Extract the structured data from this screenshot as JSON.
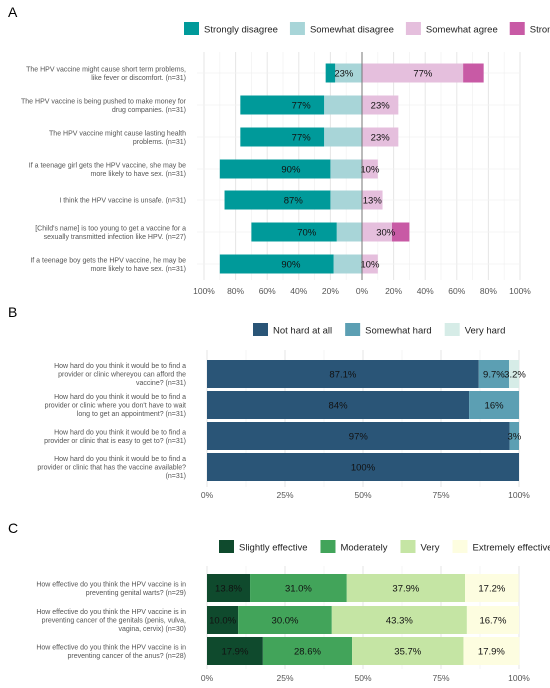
{
  "chart_data": [
    {
      "panel": "A",
      "type": "bar",
      "orientation": "horizontal",
      "stacking": "diverging",
      "legend": [
        "Strongly disagree",
        "Somewhat disagree",
        "Somewhat agree",
        "Strongly agree"
      ],
      "legend_position": "top",
      "colors": [
        "#009a9a",
        "#a8d5d8",
        "#e5bfdd",
        "#c85aa5"
      ],
      "categories": [
        "The HPV vaccine might cause short term problems,\nlike fever or discomfort.  (n=31)",
        "The HPV vaccine is being pushed to make money for\ndrug companies.  (n=31)",
        "The HPV vaccine might cause lasting health\nproblems.  (n=31)",
        "If a teenage girl gets the HPV vaccine, she may be\nmore likely to have sex.  (n=31)",
        "I think the HPV vaccine is unsafe.  (n=31)",
        "[Child's name] is too young to get a vaccine for a\nsexually transmitted infection like HPV.  (n=27)",
        "If a teenage boy gets the HPV vaccine, he may be\nmore likely to have sex.  (n=31)"
      ],
      "series": [
        {
          "name": "Strongly disagree",
          "values": [
            6,
            53,
            53,
            70,
            67,
            54,
            72
          ]
        },
        {
          "name": "Somewhat disagree",
          "values": [
            17,
            24,
            24,
            20,
            20,
            16,
            18
          ]
        },
        {
          "name": "Somewhat agree",
          "values": [
            64,
            23,
            23,
            10,
            13,
            19,
            10
          ]
        },
        {
          "name": "Strongly agree",
          "values": [
            13,
            0,
            0,
            0,
            0,
            11,
            0
          ]
        }
      ],
      "bar_labels": {
        "disagree": [
          "23%",
          "77%",
          "77%",
          "90%",
          "87%",
          "70%",
          "90%"
        ],
        "agree": [
          "77%",
          "23%",
          "23%",
          "10%",
          "13%",
          "30%",
          "10%"
        ]
      },
      "xlim": [
        -100,
        100
      ],
      "xticks": [
        "100%",
        "80%",
        "60%",
        "40%",
        "20%",
        "0%",
        "20%",
        "40%",
        "60%",
        "80%",
        "100%"
      ],
      "grid": true
    },
    {
      "panel": "B",
      "type": "bar",
      "orientation": "horizontal",
      "stacking": "stacked",
      "legend": [
        "Not hard at all",
        "Somewhat hard",
        "Very hard"
      ],
      "legend_position": "top",
      "colors": [
        "#2a5577",
        "#5c9fb3",
        "#d6ece7"
      ],
      "categories": [
        "How hard do you think it would be to find a\nprovider or clinic whereyou can afford the\nvaccine? (n=31)",
        "How hard do you think it would be to find a\nprovider or clinic where you don't have to wait\nlong to get an appointment? (n=31)",
        "How hard do you think it would be to find a\nprovider or clinic that is easy to get to? (n=31)",
        "How hard do you think it would be to find a\nprovider or clinic that has the vaccine available?\n(n=31)"
      ],
      "series": [
        {
          "name": "Not hard at all",
          "values": [
            87.1,
            84,
            97,
            100
          ]
        },
        {
          "name": "Somewhat hard",
          "values": [
            9.7,
            16,
            3,
            0
          ]
        },
        {
          "name": "Very hard",
          "values": [
            3.2,
            0,
            0,
            0
          ]
        }
      ],
      "bar_labels": [
        [
          "87.1%",
          "9.7%",
          "3.2%"
        ],
        [
          "84%",
          "16%",
          ""
        ],
        [
          "97%",
          "3%",
          ""
        ],
        [
          "100%",
          "",
          ""
        ]
      ],
      "xlim": [
        0,
        100
      ],
      "xticks": [
        "0%",
        "25%",
        "50%",
        "75%",
        "100%"
      ],
      "grid": true
    },
    {
      "panel": "C",
      "type": "bar",
      "orientation": "horizontal",
      "stacking": "stacked",
      "legend": [
        "Slightly effective",
        "Moderately",
        "Very",
        "Extremely effective"
      ],
      "legend_position": "top",
      "colors": [
        "#0f4a2d",
        "#42a45a",
        "#c5e5a4",
        "#fdfde0"
      ],
      "categories": [
        "How effective do you think the HPV vaccine is in\npreventing genital warts? (n=29)",
        "How effective do you think the HPV vaccine is in\npreventing cancer of the genitals (penis, vulva,\nvagina, cervix) (n=30)",
        "How effective do you think the HPV vaccine is in\npreventing cancer of the anus? (n=28)"
      ],
      "series": [
        {
          "name": "Slightly effective",
          "values": [
            13.8,
            10.0,
            17.9
          ]
        },
        {
          "name": "Moderately",
          "values": [
            31.0,
            30.0,
            28.6
          ]
        },
        {
          "name": "Very",
          "values": [
            37.9,
            43.3,
            35.7
          ]
        },
        {
          "name": "Extremely effective",
          "values": [
            17.2,
            16.7,
            17.9
          ]
        }
      ],
      "bar_labels": [
        [
          "13.8%",
          "31.0%",
          "37.9%",
          "17.2%"
        ],
        [
          "10.0%",
          "30.0%",
          "43.3%",
          "16.7%"
        ],
        [
          "17.9%",
          "28.6%",
          "35.7%",
          "17.9%"
        ]
      ],
      "xlim": [
        0,
        100
      ],
      "xticks": [
        "0%",
        "25%",
        "50%",
        "75%",
        "100%"
      ],
      "grid": true
    }
  ]
}
